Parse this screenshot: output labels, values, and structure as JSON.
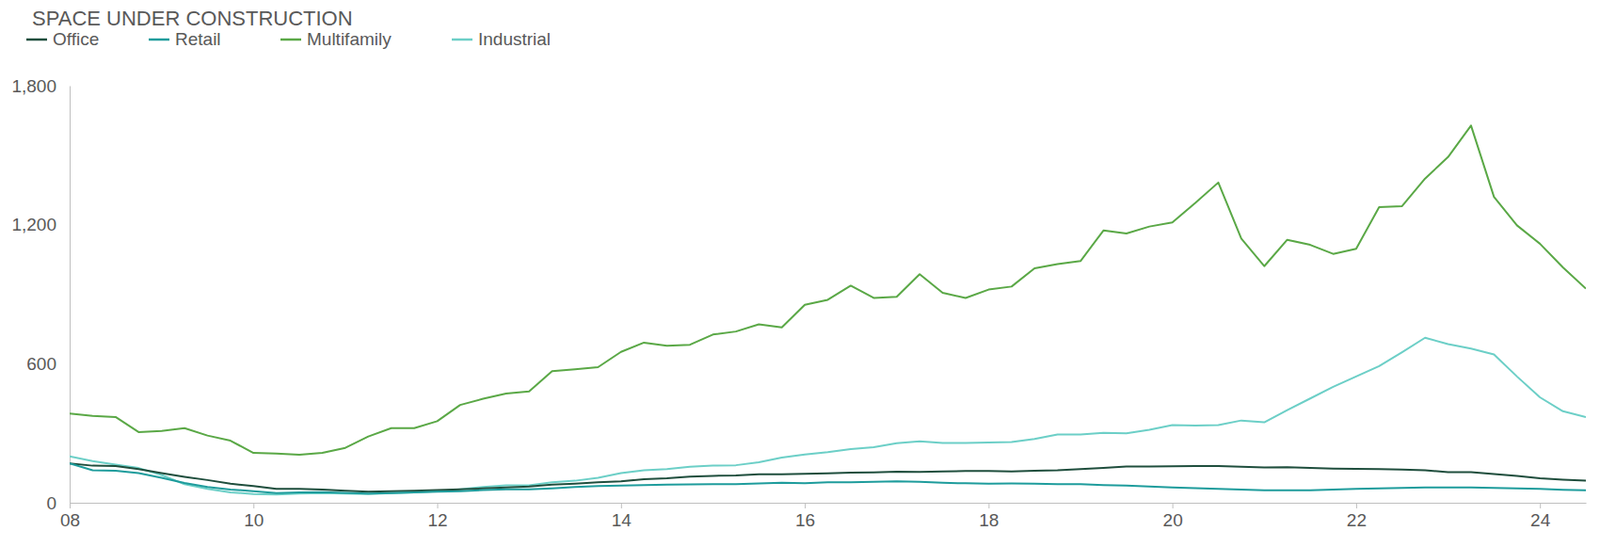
{
  "chart_data": {
    "type": "line",
    "title": "SPACE UNDER CONSTRUCTION",
    "x": [
      2008,
      2008.25,
      2008.5,
      2008.75,
      2009,
      2009.25,
      2009.5,
      2009.75,
      2010,
      2010.25,
      2010.5,
      2010.75,
      2011,
      2011.25,
      2011.5,
      2011.75,
      2012,
      2012.25,
      2012.5,
      2012.75,
      2013,
      2013.25,
      2013.5,
      2013.75,
      2014,
      2014.25,
      2014.5,
      2014.75,
      2015,
      2015.25,
      2015.5,
      2015.75,
      2016,
      2016.25,
      2016.5,
      2016.75,
      2017,
      2017.25,
      2017.5,
      2017.75,
      2018,
      2018.25,
      2018.5,
      2018.75,
      2019,
      2019.25,
      2019.5,
      2019.75,
      2020,
      2020.25,
      2020.5,
      2020.75,
      2021,
      2021.25,
      2021.5,
      2021.75,
      2022,
      2022.25,
      2022.5,
      2022.75,
      2023,
      2023.25,
      2023.5,
      2023.75,
      2024,
      2024.25,
      2024.5
    ],
    "series": [
      {
        "name": "Office",
        "color": "#1f4e3d",
        "values": [
          170,
          160,
          158,
          145,
          128,
          112,
          98,
          82,
          72,
          60,
          60,
          57,
          52,
          48,
          50,
          52,
          55,
          58,
          62,
          66,
          70,
          78,
          82,
          88,
          92,
          102,
          106,
          113,
          116,
          118,
          123,
          123,
          125,
          127,
          130,
          131,
          134,
          133,
          135,
          137,
          137,
          135,
          138,
          140,
          145,
          150,
          156,
          156,
          157,
          158,
          158,
          155,
          152,
          153,
          150,
          147,
          146,
          145,
          143,
          140,
          132,
          132,
          124,
          116,
          106,
          100,
          95
        ]
      },
      {
        "name": "Retail",
        "color": "#1e9c9c",
        "values": [
          170,
          140,
          138,
          128,
          108,
          85,
          68,
          57,
          50,
          42,
          45,
          46,
          43,
          40,
          42,
          45,
          48,
          50,
          55,
          58,
          58,
          62,
          68,
          72,
          74,
          76,
          78,
          79,
          80,
          80,
          83,
          86,
          84,
          88,
          88,
          90,
          92,
          90,
          86,
          84,
          82,
          83,
          82,
          80,
          80,
          76,
          74,
          70,
          66,
          63,
          60,
          57,
          54,
          54,
          54,
          57,
          60,
          62,
          64,
          66,
          66,
          66,
          64,
          62,
          60,
          56,
          54
        ]
      },
      {
        "name": "Multifamily",
        "color": "#5aa846",
        "values": [
          385,
          375,
          370,
          305,
          310,
          322,
          290,
          268,
          215,
          212,
          207,
          215,
          237,
          286,
          322,
          322,
          352,
          422,
          449,
          471,
          480,
          568,
          576,
          585,
          651,
          691,
          678,
          682,
          726,
          739,
          770,
          757,
          854,
          876,
          937,
          884,
          889,
          986,
          906,
          884,
          920,
          933,
          1012,
          1030,
          1043,
          1175,
          1162,
          1192,
          1210,
          1294,
          1382,
          1140,
          1021,
          1135,
          1113,
          1074,
          1096,
          1276,
          1280,
          1399,
          1492,
          1628,
          1320,
          1197,
          1118,
          1016,
          924
        ]
      },
      {
        "name": "Industrial",
        "color": "#6ccfc7",
        "values": [
          200,
          180,
          165,
          150,
          120,
          80,
          60,
          45,
          38,
          36,
          40,
          42,
          40,
          38,
          42,
          45,
          50,
          58,
          68,
          75,
          75,
          88,
          95,
          108,
          128,
          140,
          145,
          155,
          160,
          162,
          175,
          195,
          208,
          218,
          232,
          240,
          257,
          265,
          258,
          258,
          260,
          262,
          275,
          295,
          295,
          302,
          300,
          315,
          335,
          333,
          335,
          355,
          347,
          400,
          450,
          500,
          545,
          590,
          650,
          712,
          685,
          665,
          640,
          545,
          455,
          395,
          370
        ]
      }
    ],
    "xlim": [
      2008,
      2024.5
    ],
    "xticks": [
      {
        "value": 2008,
        "label": "08"
      },
      {
        "value": 2010,
        "label": "10"
      },
      {
        "value": 2012,
        "label": "12"
      },
      {
        "value": 2014,
        "label": "14"
      },
      {
        "value": 2016,
        "label": "16"
      },
      {
        "value": 2018,
        "label": "18"
      },
      {
        "value": 2020,
        "label": "20"
      },
      {
        "value": 2022,
        "label": "22"
      },
      {
        "value": 2024,
        "label": "24"
      }
    ],
    "ylim": [
      0,
      1800
    ],
    "yticks": [
      0,
      600,
      {
        "value": 1200,
        "label": "1,200"
      },
      {
        "value": 1800,
        "label": "1,800"
      }
    ],
    "grid": false,
    "legend": "top-left"
  }
}
